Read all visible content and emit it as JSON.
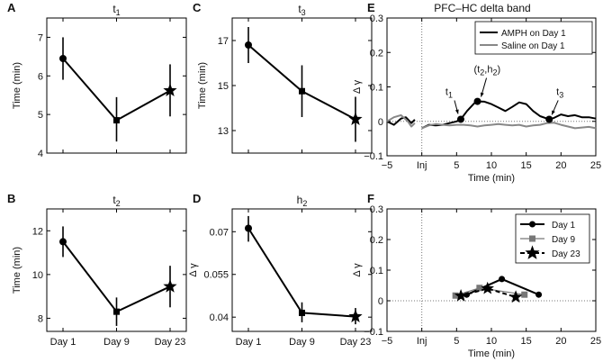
{
  "figure": {
    "suptitle_right": "PFC–HC delta band"
  },
  "chart_data": [
    {
      "id": "A",
      "type": "line",
      "letter": "A",
      "title_main": "t",
      "title_sub": "1",
      "categories": [
        "Day 1",
        "Day 9",
        "Day 23"
      ],
      "show_xticklabels": false,
      "ylabel": "Time (min)",
      "ylim": [
        4,
        7.5
      ],
      "yticks": [
        4,
        5,
        6,
        7
      ],
      "ytick_labels": [
        "4",
        "5",
        "6",
        "7"
      ],
      "series": [
        {
          "name": "t1",
          "values": [
            6.45,
            4.85,
            5.62
          ],
          "err_low": [
            5.9,
            4.3,
            4.95
          ],
          "err_high": [
            7.0,
            5.45,
            6.3
          ],
          "markers": [
            "circle",
            "square",
            "star"
          ]
        }
      ]
    },
    {
      "id": "B",
      "type": "line",
      "letter": "B",
      "title_main": "t",
      "title_sub": "2",
      "categories": [
        "Day 1",
        "Day 9",
        "Day 23"
      ],
      "show_xticklabels": true,
      "ylabel": "Time (min)",
      "ylim": [
        7.4,
        13
      ],
      "yticks": [
        8,
        10,
        12
      ],
      "ytick_labels": [
        "8",
        "10",
        "12"
      ],
      "series": [
        {
          "name": "t2",
          "values": [
            11.5,
            8.3,
            9.45
          ],
          "err_low": [
            10.8,
            7.65,
            8.5
          ],
          "err_high": [
            12.2,
            8.95,
            10.4
          ],
          "markers": [
            "circle",
            "square",
            "star"
          ]
        }
      ]
    },
    {
      "id": "C",
      "type": "line",
      "letter": "C",
      "title_main": "t",
      "title_sub": "3",
      "categories": [
        "Day 1",
        "Day 9",
        "Day 23"
      ],
      "show_xticklabels": false,
      "ylabel": "Time (min)",
      "ylim": [
        12,
        18
      ],
      "yticks": [
        13,
        15,
        17
      ],
      "ytick_labels": [
        "13",
        "15",
        "17"
      ],
      "series": [
        {
          "name": "t3",
          "values": [
            16.8,
            14.75,
            13.5
          ],
          "err_low": [
            16.0,
            13.6,
            12.5
          ],
          "err_high": [
            17.6,
            15.9,
            14.5
          ],
          "markers": [
            "circle",
            "square",
            "star"
          ]
        }
      ]
    },
    {
      "id": "D",
      "type": "line",
      "letter": "D",
      "title_main": "h",
      "title_sub": "2",
      "categories": [
        "Day 1",
        "Day 9",
        "Day 23"
      ],
      "show_xticklabels": true,
      "ylabel": "Δ γ",
      "ylim": [
        0.035,
        0.078
      ],
      "yticks": [
        0.04,
        0.055,
        0.07
      ],
      "ytick_labels": [
        "0.04",
        "0.055",
        "0.07"
      ],
      "series": [
        {
          "name": "h2",
          "values": [
            0.0712,
            0.0415,
            0.0402
          ],
          "err_low": [
            0.0665,
            0.0382,
            0.0375
          ],
          "err_high": [
            0.0755,
            0.0452,
            0.0432
          ],
          "markers": [
            "circle",
            "square",
            "star"
          ]
        }
      ]
    },
    {
      "id": "E",
      "type": "line",
      "letter": "E",
      "xlabel": "Time (min)",
      "ylabel": "Δ γ",
      "xlim": [
        -5,
        25
      ],
      "ylim": [
        -0.1,
        0.3
      ],
      "xticks": [
        -5,
        0,
        5,
        10,
        15,
        20,
        25
      ],
      "xtick_labels": [
        "−5",
        "Inj",
        "5",
        "10",
        "15",
        "20",
        "25"
      ],
      "yticks": [
        -0.1,
        0,
        0.1,
        0.2,
        0.3
      ],
      "ytick_labels": [
        "−0.1",
        "0",
        "0.1",
        "0.2",
        "0.3"
      ],
      "vline_x": 0,
      "hline_y": 0,
      "series": [
        {
          "name": "AMPH on Day 1",
          "color": "#000000",
          "pre_x": [
            -5,
            -4,
            -3,
            -2.3,
            -1.5,
            -1
          ],
          "pre_y": [
            0.0,
            -0.01,
            0.008,
            0.012,
            -0.005,
            0.005
          ],
          "x": [
            0,
            1,
            2,
            3,
            4,
            5,
            5.6,
            6.5,
            7.5,
            8,
            9,
            10,
            11,
            12,
            13,
            14,
            15,
            16,
            17,
            18,
            18.3,
            19,
            20,
            21,
            22,
            23,
            24,
            25
          ],
          "y": [
            -0.02,
            -0.01,
            -0.012,
            -0.01,
            -0.005,
            0.0,
            0.006,
            0.03,
            0.052,
            0.058,
            0.057,
            0.05,
            0.04,
            0.03,
            0.042,
            0.055,
            0.05,
            0.03,
            0.015,
            0.008,
            0.006,
            0.01,
            0.02,
            0.015,
            0.018,
            0.012,
            0.012,
            0.008
          ]
        },
        {
          "name": "Saline on Day 1",
          "color": "#888888",
          "pre_x": [
            -5,
            -4,
            -3,
            -2,
            -1.5,
            -1
          ],
          "pre_y": [
            0.0,
            0.012,
            0.018,
            0.0,
            -0.015,
            -0.005
          ],
          "x": [
            0,
            1,
            2,
            3,
            4,
            5,
            6,
            7,
            8,
            9,
            10,
            11,
            12,
            13,
            14,
            15,
            16,
            17,
            18,
            19,
            20,
            21,
            22,
            23,
            24,
            25
          ],
          "y": [
            -0.02,
            -0.012,
            -0.008,
            -0.01,
            -0.012,
            -0.01,
            -0.01,
            -0.012,
            -0.015,
            -0.012,
            -0.01,
            -0.008,
            -0.01,
            -0.012,
            -0.01,
            -0.015,
            -0.012,
            -0.01,
            -0.005,
            -0.004,
            -0.01,
            -0.015,
            -0.02,
            -0.018,
            -0.016,
            -0.02
          ]
        }
      ],
      "markers": [
        {
          "label": "t",
          "sub": "1",
          "x": 5.6,
          "y": 0.006,
          "label_dx": -13,
          "label_dy": -27,
          "tip_dx": -3,
          "tip_dy": -6
        },
        {
          "label": "(t",
          "sub": "2",
          "rest": ",h",
          "sub2": "2",
          "tail": ")",
          "x": 8.0,
          "y": 0.058,
          "label_dx": 12,
          "label_dy": -32,
          "tip_dx": 4,
          "tip_dy": -5
        },
        {
          "label": "t",
          "sub": "3",
          "x": 18.3,
          "y": 0.006,
          "label_dx": 12,
          "label_dy": -27,
          "tip_dx": 3,
          "tip_dy": -5
        }
      ],
      "legend_position": "top-right"
    },
    {
      "id": "F",
      "type": "line",
      "letter": "F",
      "xlabel": "Time (min)",
      "ylabel": "Δ γ",
      "xlim": [
        -5,
        25
      ],
      "ylim": [
        -0.1,
        0.3
      ],
      "xticks": [
        -5,
        0,
        5,
        10,
        15,
        20,
        25
      ],
      "xtick_labels": [
        "−5",
        "Inj",
        "5",
        "10",
        "15",
        "20",
        "25"
      ],
      "yticks": [
        -0.1,
        0,
        0.1,
        0.2,
        0.3
      ],
      "ytick_labels": [
        "−0.1",
        "0",
        "0.1",
        "0.2",
        "0.3"
      ],
      "vline_x": 0,
      "hline_y": 0,
      "series": [
        {
          "name": "Day 1",
          "color": "#000000",
          "marker": "circle",
          "dash": "",
          "x": [
            6.45,
            11.5,
            16.8
          ],
          "y": [
            0.02,
            0.071,
            0.02
          ]
        },
        {
          "name": "Day 9",
          "color": "#777777",
          "marker": "square",
          "dash": "",
          "x": [
            4.85,
            8.3,
            14.75
          ],
          "y": [
            0.017,
            0.042,
            0.02
          ]
        },
        {
          "name": "Day 23",
          "color": "#000000",
          "marker": "star",
          "dash": "5,3",
          "x": [
            5.62,
            9.45,
            13.5
          ],
          "y": [
            0.016,
            0.04,
            0.012
          ]
        }
      ],
      "legend_position": "top-right"
    }
  ]
}
